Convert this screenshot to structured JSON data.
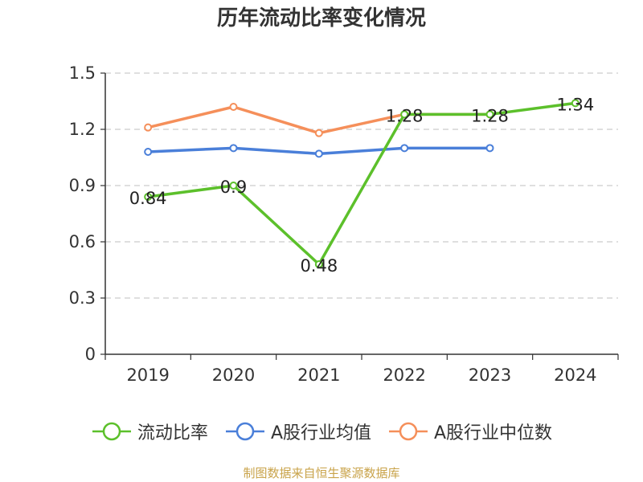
{
  "title": "历年流动比率变化情况",
  "source": "制图数据来自恒生聚源数据库",
  "chart_data": {
    "type": "line",
    "categories": [
      "2019",
      "2020",
      "2021",
      "2022",
      "2023",
      "2024"
    ],
    "ylim": [
      0,
      1.5
    ],
    "yticks": [
      "0",
      "0.3",
      "0.6",
      "0.9",
      "1.2",
      "1.5"
    ],
    "grid": true,
    "legend_position": "bottom",
    "series": [
      {
        "name": "流动比率",
        "color": "#5cc02b",
        "values": [
          0.84,
          0.9,
          0.48,
          1.28,
          1.28,
          1.34
        ],
        "labels": [
          "0.84",
          "0.9",
          "0.48",
          "1.28",
          "1.28",
          "1.34"
        ]
      },
      {
        "name": "A股行业均值",
        "color": "#4a7fd9",
        "values": [
          1.08,
          1.1,
          1.07,
          1.1,
          1.1,
          null
        ]
      },
      {
        "name": "A股行业中位数",
        "color": "#f58f5a",
        "values": [
          1.21,
          1.32,
          1.18,
          1.28,
          1.28,
          null
        ]
      }
    ]
  }
}
